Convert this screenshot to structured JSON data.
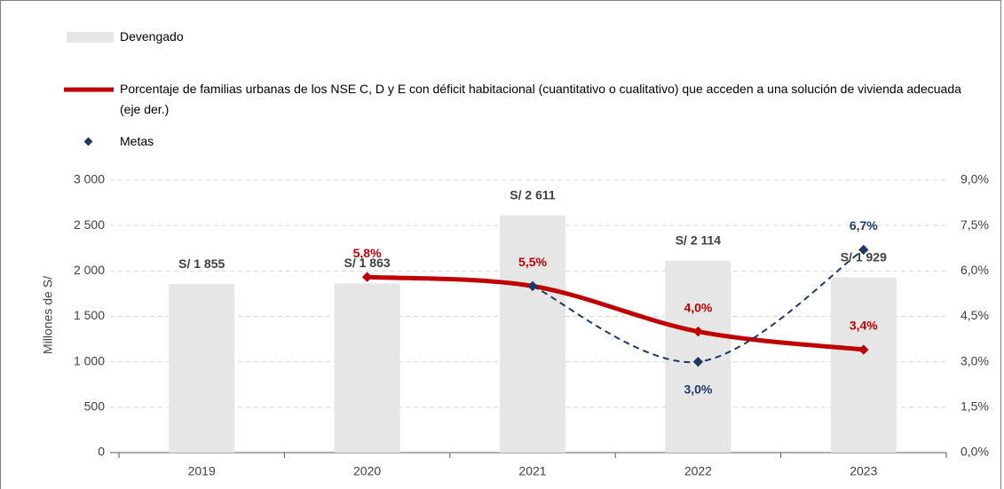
{
  "chart_data": {
    "type": "bar",
    "categories": [
      "2019",
      "2020",
      "2021",
      "2022",
      "2023"
    ],
    "y_label": "Millones de S/",
    "ylim": [
      0,
      3000
    ],
    "yticks": [
      0,
      500,
      {
        "value": 1000,
        "label": "1 000"
      },
      {
        "value": 1500,
        "label": "1 500"
      },
      {
        "value": 2000,
        "label": "2 000"
      },
      {
        "value": 2500,
        "label": "2 500"
      },
      {
        "value": 3000,
        "label": "3 000"
      }
    ],
    "y2lim": [
      0,
      9
    ],
    "y2ticks": [
      {
        "value": 0,
        "label": "0,0%"
      },
      {
        "value": 1.5,
        "label": "1,5%"
      },
      {
        "value": 3,
        "label": "3,0%"
      },
      {
        "value": 4.5,
        "label": "4,5%"
      },
      {
        "value": 6,
        "label": "6,0%"
      },
      {
        "value": 7.5,
        "label": "7,5%"
      },
      {
        "value": 9,
        "label": "9,0%"
      }
    ],
    "grid": true,
    "series": [
      {
        "name": "Devengado",
        "type": "bar",
        "color": "#e6e6e6",
        "values": [
          1855,
          1863,
          2611,
          2114,
          1929
        ],
        "value_labels": [
          "S/ 1 855",
          "S/ 1 863",
          "S/ 2 611",
          "S/ 2 114",
          "S/ 1 929"
        ]
      },
      {
        "name": "Porcentaje de familias urbanas de los NSE C, D y E con déficit habitacional (cuantitativo o cualitativo) que acceden a una solución de vivienda adecuada (eje der.)",
        "type": "line",
        "axis": "y2",
        "color": "#c00000",
        "values": [
          null,
          5.8,
          5.5,
          4.0,
          3.4
        ],
        "value_labels": [
          null,
          "5,8%",
          "5,5%",
          "4,0%",
          "3,4%"
        ]
      },
      {
        "name": "Metas",
        "type": "dashed",
        "axis": "y2",
        "color": "#1f3864",
        "values": [
          null,
          null,
          5.5,
          3.0,
          6.7
        ],
        "value_labels": [
          null,
          null,
          null,
          "3,0%",
          "6,7%"
        ]
      }
    ]
  }
}
